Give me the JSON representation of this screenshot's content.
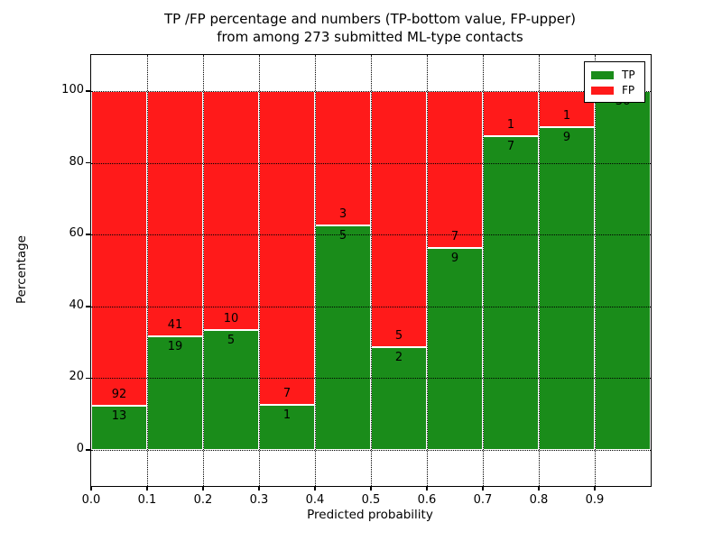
{
  "figure": {
    "title_line1": "TP /FP percentage and numbers (TP-bottom value, FP-upper)",
    "title_line2": "from among 273 submitted ML-type contacts"
  },
  "colors": {
    "tp_green": "#1a8c1a",
    "fp_red": "#ff1a1a",
    "grid": "#000000",
    "background": "#ffffff"
  },
  "chart_data": {
    "type": "bar",
    "stacked": true,
    "normalized_to_percent": true,
    "title": "TP /FP percentage and numbers (TP-bottom value, FP-upper) from among 273 submitted ML-type contacts",
    "xlabel": "Predicted probability",
    "ylabel": "Percentage",
    "total_contacts": 273,
    "xlim": [
      0.0,
      1.0
    ],
    "ylim": [
      -10,
      110
    ],
    "grid": "dotted",
    "x_tick_labels": [
      "0.0",
      "0.1",
      "0.2",
      "0.3",
      "0.4",
      "0.5",
      "0.6",
      "0.7",
      "0.8",
      "0.9"
    ],
    "y_tick_values": [
      0,
      20,
      40,
      60,
      80,
      100
    ],
    "categories": [
      "0.0-0.1",
      "0.1-0.2",
      "0.2-0.3",
      "0.3-0.4",
      "0.4-0.5",
      "0.5-0.6",
      "0.6-0.7",
      "0.7-0.8",
      "0.8-0.9",
      "0.9-1.0"
    ],
    "series": [
      {
        "name": "TP",
        "color": "#1a8c1a",
        "counts": [
          13,
          19,
          5,
          1,
          5,
          2,
          9,
          7,
          9,
          36
        ]
      },
      {
        "name": "FP",
        "color": "#ff1a1a",
        "counts": [
          92,
          41,
          10,
          7,
          3,
          5,
          7,
          1,
          1,
          0
        ]
      }
    ],
    "tp_percent": [
      12.38,
      31.67,
      33.33,
      12.5,
      62.5,
      28.57,
      56.25,
      87.5,
      90.0,
      100.0
    ],
    "legend": {
      "position": "upper right",
      "entries": [
        "TP",
        "FP"
      ]
    }
  }
}
